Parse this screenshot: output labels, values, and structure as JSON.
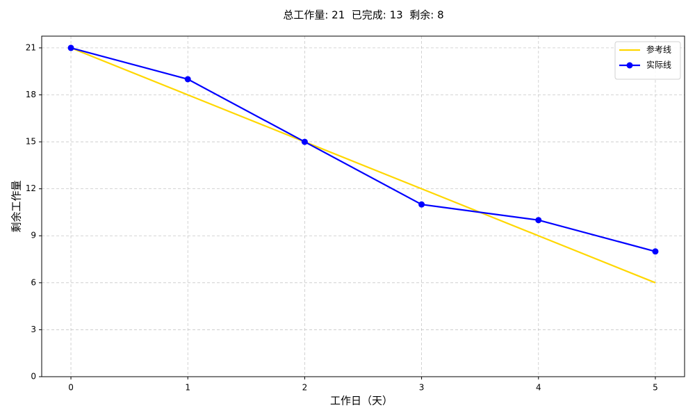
{
  "chart_data": {
    "type": "line",
    "title": "总工作量: 21  已完成: 13  剩余: 8",
    "x_label": "工作日（天）",
    "y_label": "剩余工作量",
    "x": [
      0,
      1,
      2,
      3,
      4,
      5
    ],
    "series": [
      {
        "name": "参考线",
        "color": "#ffd700",
        "marker": false,
        "values": [
          21,
          18,
          15,
          12,
          9,
          6
        ]
      },
      {
        "name": "实际线",
        "color": "#0000ff",
        "marker": true,
        "values": [
          21,
          19,
          15,
          11,
          10,
          8
        ]
      }
    ],
    "xlim": [
      -0.25,
      5.25
    ],
    "ylim": [
      0,
      21.75
    ],
    "xticks": [
      0,
      1,
      2,
      3,
      4,
      5
    ],
    "yticks": [
      0,
      3,
      6,
      9,
      12,
      15,
      18,
      21
    ],
    "grid": true,
    "legend": "upper right"
  }
}
